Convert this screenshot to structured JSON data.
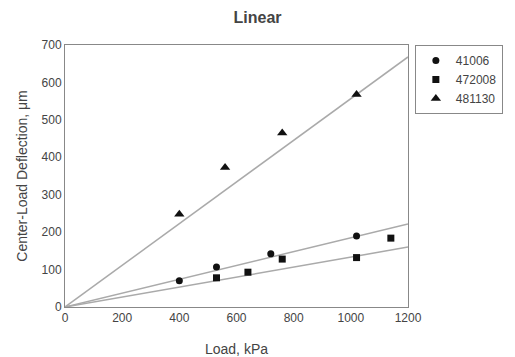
{
  "chart_data": {
    "type": "scatter",
    "title": "Linear",
    "xlabel": "Load, kPa",
    "ylabel": "Center-Load Deflection, μm",
    "xlim": [
      0,
      1200
    ],
    "ylim": [
      0,
      700
    ],
    "xticks": [
      0,
      200,
      400,
      600,
      800,
      1000,
      1200
    ],
    "yticks": [
      0,
      100,
      200,
      300,
      400,
      500,
      600,
      700
    ],
    "grid": false,
    "legend": "right",
    "series": [
      {
        "type": "line",
        "color": "#aaaaaa",
        "x": [
          0,
          1200
        ],
        "values": [
          0,
          222
        ]
      },
      {
        "type": "scatter",
        "name": "41006",
        "color": "#111111",
        "marker": "circle",
        "x": [
          400,
          530,
          720,
          1020
        ],
        "values": [
          70,
          107,
          142,
          190
        ]
      },
      {
        "type": "line",
        "color": "#aaaaaa",
        "x": [
          0,
          1200
        ],
        "values": [
          0,
          160
        ]
      },
      {
        "type": "scatter",
        "name": "472008",
        "color": "#111111",
        "marker": "square",
        "x": [
          530,
          640,
          760,
          1020,
          1140
        ],
        "values": [
          78,
          93,
          128,
          132,
          184
        ]
      },
      {
        "type": "line",
        "color": "#aaaaaa",
        "x": [
          0,
          1200
        ],
        "values": [
          0,
          668
        ]
      },
      {
        "type": "scatter",
        "name": "481130",
        "color": "#111111",
        "marker": "triangle-up",
        "x": [
          400,
          560,
          760,
          1020
        ],
        "values": [
          248,
          373,
          465,
          568
        ]
      }
    ]
  }
}
